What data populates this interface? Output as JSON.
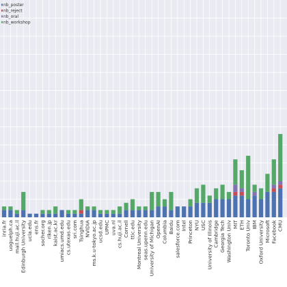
{
  "chart_data": {
    "type": "bar",
    "stacked": true,
    "legend_placement": "top-left",
    "grid": true,
    "legend": [
      {
        "name": "nb_poster",
        "color": "#4c72b0"
      },
      {
        "name": "nb_reject",
        "color": "#c44e52"
      },
      {
        "name": "nb_oral",
        "color": "#8172b2"
      },
      {
        "name": "nb_workshop",
        "color": "#55a868"
      }
    ],
    "categories": [
      "inria.fr",
      "uoguelph.ca",
      "mail.huji.ac.il",
      "Edinburgh University",
      "ucla.edu",
      "ens.fr",
      "socher.org",
      "riken.jp",
      "kaist.ac.kr",
      "umiacs.umd.edu",
      "cs.utexas.edu",
      "sri.com",
      "Tsinghua",
      "NVIDIA",
      "ms.k.u-tokyo.ac.jp",
      "ucsd.edu",
      "UPMC",
      "uva.nl",
      "cs.huji.ac.il",
      "Cornell",
      "ttic.edu",
      "Montreal University",
      "seas.upenn.edu",
      "University of Michigan",
      "OpenAI",
      "Columbia",
      "Baidu",
      "salesforce.com",
      "Intel",
      "Princeton",
      "NYU",
      "USC",
      "University of Illinois",
      "Cambridge",
      "Georgia Tech",
      "Washington Univ",
      "MIT",
      "ETH",
      "Toronto Univ",
      "IBM",
      "Oxford University",
      "Microsoft",
      "Facebook",
      "CMU"
    ],
    "series": [
      {
        "name": "nb_poster",
        "values": [
          2,
          2,
          1,
          2,
          1,
          1,
          1,
          1,
          1,
          2,
          1,
          1,
          1,
          2,
          2,
          1,
          1,
          1,
          1,
          2,
          2,
          2,
          2,
          2,
          3,
          3,
          2,
          3,
          3,
          3,
          4,
          4,
          4,
          5,
          5,
          5,
          6,
          6,
          5,
          6,
          5,
          7,
          7,
          8
        ]
      },
      {
        "name": "nb_reject",
        "values": [
          0,
          0,
          0,
          0,
          0,
          0,
          0,
          0,
          0,
          0,
          0,
          0,
          1,
          0,
          0,
          0,
          0,
          0,
          0,
          0,
          0,
          0,
          0,
          0,
          0,
          0,
          0,
          0,
          0,
          0,
          0,
          0,
          0,
          0,
          0,
          0,
          1,
          1,
          0,
          0,
          0,
          0,
          1,
          1
        ]
      },
      {
        "name": "nb_oral",
        "values": [
          0,
          0,
          0,
          0,
          0,
          0,
          0,
          0,
          0,
          0,
          0,
          0,
          0,
          0,
          0,
          0,
          0,
          0,
          0,
          0,
          0,
          0,
          0,
          0,
          0,
          0,
          0,
          0,
          0,
          0,
          0,
          0,
          0,
          0,
          0,
          0,
          2,
          1,
          0,
          1,
          0,
          0,
          1,
          1
        ]
      },
      {
        "name": "nb_workshop",
        "values": [
          1,
          1,
          1,
          5,
          0,
          0,
          1,
          1,
          2,
          0,
          1,
          1,
          3,
          1,
          1,
          1,
          1,
          1,
          2,
          2,
          3,
          1,
          1,
          5,
          4,
          2,
          5,
          0,
          0,
          2,
          4,
          5,
          2,
          3,
          4,
          2,
          7,
          5,
          12,
          2,
          3,
          5,
          7,
          13
        ]
      }
    ]
  }
}
